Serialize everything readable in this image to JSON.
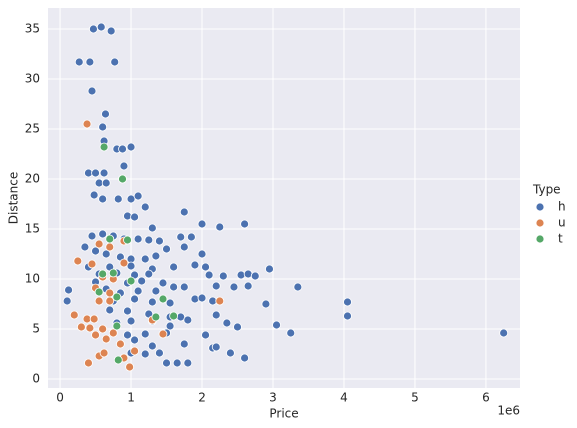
{
  "chart_data": {
    "type": "scatter",
    "x_label": "Price",
    "y_label": "Distance",
    "x_offset_label": "1e6",
    "legend_title": "Type",
    "legend_position": "right",
    "grid": true,
    "xlim": [
      -0.17,
      6.48
    ],
    "ylim": [
      -0.9,
      37.1
    ],
    "xticks": [
      0,
      1,
      2,
      3,
      4,
      5,
      6
    ],
    "yticks": [
      0,
      5,
      10,
      15,
      20,
      25,
      30,
      35
    ],
    "series": [
      {
        "name": "h",
        "color": "#4c72b0",
        "x": [
          0.47,
          0.58,
          0.72,
          0.27,
          0.42,
          0.77,
          0.45,
          0.64,
          0.6,
          0.62,
          0.8,
          0.88,
          1.0,
          0.9,
          0.4,
          0.5,
          0.62,
          0.88,
          0.55,
          0.65,
          0.82,
          1.0,
          0.48,
          0.6,
          1.1,
          1.2,
          1.75,
          0.95,
          1.05,
          1.3,
          2.0,
          2.25,
          2.6,
          0.45,
          0.6,
          0.75,
          0.9,
          1.1,
          1.25,
          1.4,
          1.7,
          1.85,
          1.5,
          1.75,
          2.0,
          0.35,
          0.5,
          0.65,
          0.85,
          1.0,
          1.2,
          1.35,
          0.4,
          0.7,
          1.0,
          1.3,
          1.6,
          1.9,
          2.05,
          2.95,
          0.55,
          0.8,
          1.05,
          1.25,
          2.1,
          2.3,
          2.55,
          2.65,
          2.75,
          0.5,
          0.95,
          1.15,
          1.45,
          0.12,
          0.65,
          0.85,
          1.1,
          1.35,
          1.6,
          1.75,
          2.2,
          2.45,
          2.65,
          3.35,
          0.1,
          0.75,
          1.05,
          1.3,
          1.55,
          1.9,
          2.0,
          2.15,
          2.9,
          4.05,
          0.7,
          0.95,
          1.25,
          1.55,
          1.7,
          2.2,
          4.05,
          0.8,
          1.0,
          1.3,
          1.55,
          1.8,
          2.35,
          2.5,
          3.05,
          3.25,
          6.25,
          0.95,
          1.2,
          1.5,
          2.05,
          2.15,
          2.4,
          2.6,
          1.05,
          1.3,
          1.75,
          2.2,
          1.0,
          1.2,
          1.4,
          1.5,
          1.65,
          1.8
        ],
        "values": [
          35,
          35.2,
          34.8,
          31.7,
          31.7,
          31.7,
          28.8,
          26.5,
          25.2,
          23.8,
          23,
          23,
          23.2,
          21.3,
          20.6,
          20.6,
          20.6,
          20,
          19.6,
          19.6,
          18,
          18,
          18.4,
          18,
          18.3,
          17.2,
          16.7,
          16.3,
          16.2,
          15.1,
          15.5,
          15.2,
          15.5,
          14.3,
          14.5,
          14.3,
          14,
          14,
          13.9,
          13.8,
          14.2,
          14.2,
          13,
          13.2,
          12.5,
          13.2,
          12.8,
          12.5,
          12.2,
          12,
          12,
          12.3,
          11.2,
          11.2,
          11.3,
          11,
          11.2,
          11.4,
          11.2,
          11,
          10.5,
          10.6,
          10.4,
          10.5,
          10.4,
          10.3,
          10.4,
          10.5,
          10.3,
          9.7,
          9.6,
          9.8,
          9.6,
          8.9,
          9,
          8.6,
          8.8,
          8.8,
          9.2,
          9.2,
          9.3,
          9.2,
          9.3,
          9.2,
          7.8,
          7.8,
          8,
          7.7,
          7.6,
          8,
          8.1,
          7.8,
          7.5,
          7.7,
          6.9,
          6.8,
          6.5,
          6.2,
          6.2,
          6.4,
          6.3,
          5.6,
          5.8,
          5.8,
          5.3,
          5.9,
          5.6,
          5.2,
          5.4,
          4.6,
          4.6,
          4.4,
          4.5,
          4.6,
          4.4,
          3.1,
          2.6,
          2.1,
          3.9,
          3.3,
          3.5,
          3.2,
          2.6,
          2.5,
          2.6,
          1.6,
          1.6,
          1.6
        ]
      },
      {
        "name": "u",
        "color": "#dd8452",
        "x": [
          0.38,
          0.25,
          0.45,
          0.55,
          0.7,
          0.9,
          0.6,
          0.75,
          0.5,
          0.7,
          0.2,
          0.38,
          0.48,
          0.55,
          0.7,
          0.3,
          0.42,
          0.6,
          0.75,
          0.5,
          0.65,
          0.9,
          0.55,
          0.62,
          0.4,
          0.98,
          1.05,
          0.85,
          1.3,
          1.45,
          2.25,
          0.9
        ],
        "values": [
          25.5,
          11.8,
          11.5,
          13.5,
          13.2,
          13.8,
          10.2,
          10,
          9.1,
          8.6,
          6.4,
          6,
          6,
          7.8,
          7.8,
          5.2,
          5.1,
          5,
          4.6,
          4.4,
          4,
          2.1,
          2.3,
          2.6,
          1.6,
          1.2,
          2.8,
          3.5,
          5.9,
          4.5,
          7.8,
          11.6
        ]
      },
      {
        "name": "t",
        "color": "#55a868",
        "x": [
          0.62,
          0.88,
          0.7,
          0.95,
          1.0,
          0.6,
          0.75,
          0.55,
          0.8,
          1.45,
          1.6,
          1.35,
          0.82,
          0.8
        ],
        "values": [
          23.2,
          20,
          14,
          13.9,
          9.8,
          10.5,
          10.6,
          8.7,
          8.2,
          8,
          6.3,
          6.2,
          1.9,
          5.3
        ]
      }
    ]
  }
}
